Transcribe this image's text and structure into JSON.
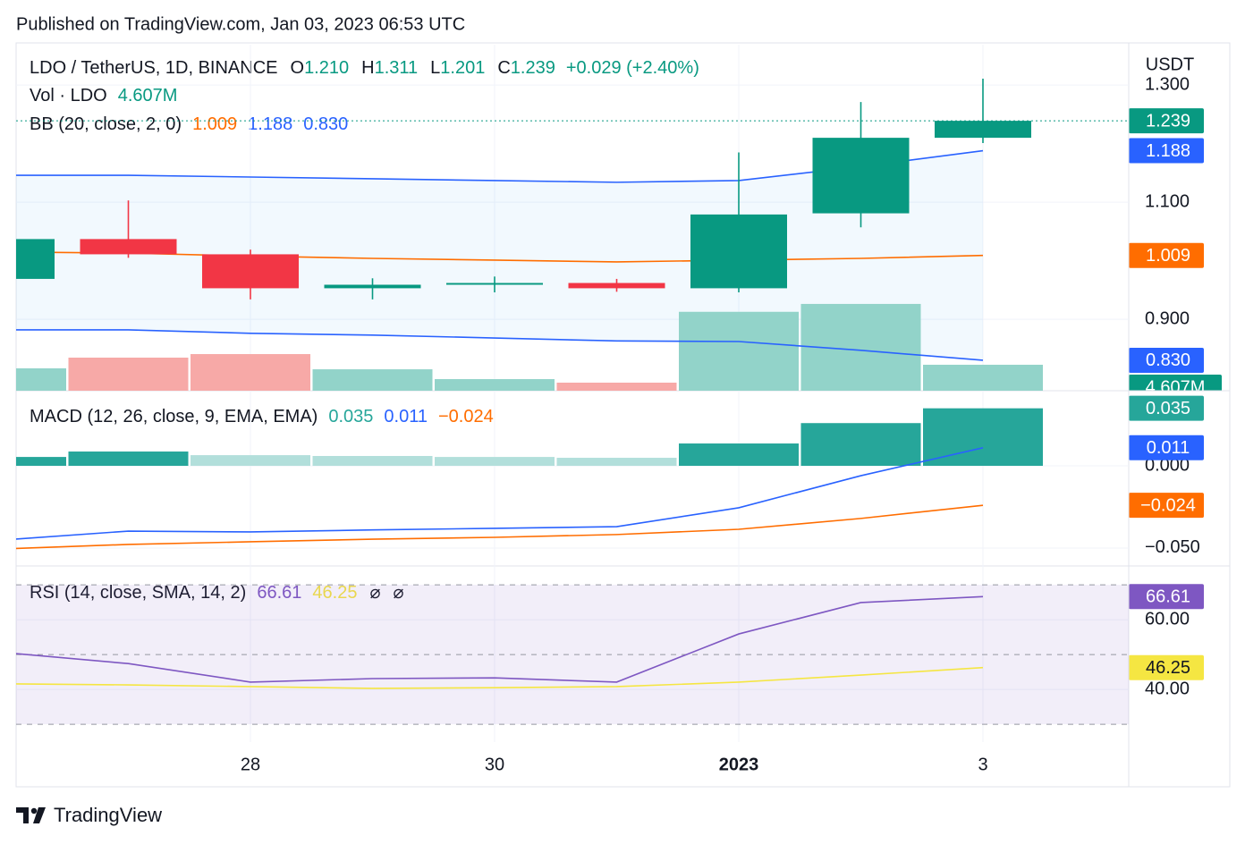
{
  "header": {
    "published": "Published on TradingView.com, Jan 03, 2023 06:53 UTC"
  },
  "footer": {
    "brand": "TradingView"
  },
  "chart_data": {
    "type": "candlestick",
    "symbol": "LDO / TetherUS, 1D, BINANCE",
    "currency": "USDT",
    "categories": [
      null,
      null,
      "28",
      null,
      "30",
      null,
      "2023",
      null,
      "3"
    ],
    "ylim": [
      0.778,
      1.369
    ],
    "yticks": [
      {
        "value": 1.3,
        "label": "1.300"
      },
      {
        "value": 1.1,
        "label": "1.100"
      },
      {
        "value": 0.9,
        "label": "0.900"
      }
    ],
    "grid": true,
    "up_color": "#089981",
    "down_color": "#f23645",
    "open": [
      0.969,
      1.037,
      1.011,
      0.953,
      0.959,
      0.962,
      0.953,
      1.081,
      1.21
    ],
    "high": [
      1.04,
      1.103,
      1.019,
      0.97,
      0.973,
      0.969,
      1.185,
      1.271,
      1.311
    ],
    "low": [
      0.965,
      1.005,
      0.934,
      0.934,
      0.946,
      0.947,
      0.946,
      1.057,
      1.201
    ],
    "close": [
      1.037,
      1.011,
      0.953,
      0.959,
      0.962,
      0.953,
      1.079,
      1.21,
      1.239
    ],
    "ohlc_keys": [
      "O",
      "H",
      "L",
      "C"
    ],
    "ohlc_labels": [
      "1.210",
      "1.311",
      "1.201",
      "1.239"
    ],
    "change": "+0.029 (+2.40%)",
    "volume": {
      "name": "Vol · LDO",
      "ylim": [
        0,
        61.4
      ],
      "values": [
        3.97,
        5.87,
        6.5,
        3.8,
        2.06,
        1.43,
        14.0,
        15.4,
        4.607
      ],
      "value_label": "4.607M",
      "up_color": "#92d3c9",
      "down_color": "#f7a9a7"
    },
    "bb": {
      "name": "BB (20, close, 2, 0)",
      "fill": "rgba(33,150,243,0.06)",
      "basis": {
        "color": "#ff6d00",
        "values": [
          1.015,
          1.013,
          1.008,
          1.004,
          1.001,
          0.998,
          1.001,
          1.004,
          1.009
        ],
        "value_label": "1.009"
      },
      "upper": {
        "color": "#2962ff",
        "values": [
          1.146,
          1.146,
          1.143,
          1.14,
          1.137,
          1.134,
          1.137,
          1.161,
          1.188
        ],
        "value_label": "1.188"
      },
      "lower": {
        "color": "#2962ff",
        "values": [
          0.882,
          0.882,
          0.876,
          0.873,
          0.868,
          0.863,
          0.862,
          0.847,
          0.83
        ],
        "value_label": "0.830"
      }
    },
    "macd": {
      "name": "MACD (12, 26, close, 9, EMA, EMA)",
      "ylim": [
        -0.0609,
        0.0457
      ],
      "yticks": [
        {
          "value": 0,
          "label": "0.000"
        },
        {
          "value": -0.05,
          "label": "−0.050"
        }
      ],
      "histogram": {
        "values": [
          0.0054,
          0.0087,
          0.0065,
          0.006,
          0.0054,
          0.0049,
          0.0136,
          0.026,
          0.035
        ],
        "value_label": "0.035",
        "up_color": "#26a69a",
        "down_color": "#b2dfdb"
      },
      "macd": {
        "color": "#2962ff",
        "values": [
          -0.045,
          -0.0397,
          -0.0402,
          -0.039,
          -0.038,
          -0.037,
          -0.0255,
          -0.006,
          0.011
        ],
        "value_label": "0.011"
      },
      "signal": {
        "color": "#ff6d00",
        "values": [
          -0.0505,
          -0.0478,
          -0.0462,
          -0.0446,
          -0.0435,
          -0.0418,
          -0.0386,
          -0.032,
          -0.024
        ],
        "value_label": "−0.024"
      }
    },
    "rsi": {
      "name": "RSI (14, close, SMA, 14, 2)",
      "ylim": [
        24.9,
        75.4
      ],
      "yticks": [
        {
          "value": 60,
          "label": "60.00"
        },
        {
          "value": 40,
          "label": "40.00"
        }
      ],
      "bands": [
        70,
        50,
        30
      ],
      "band_fill": "rgba(126,87,194,0.1)",
      "rsi": {
        "color": "#7e57c2",
        "values": [
          50.5,
          47.4,
          42.1,
          43.1,
          43.3,
          42.1,
          55.9,
          64.9,
          66.61
        ],
        "value_label": "66.61"
      },
      "sma": {
        "color": "#f5e642",
        "values": [
          41.6,
          41.3,
          40.8,
          40.3,
          40.5,
          40.8,
          42.1,
          44.1,
          46.25
        ],
        "value_label": "46.25"
      },
      "extras": [
        "⌀",
        "⌀"
      ]
    }
  }
}
